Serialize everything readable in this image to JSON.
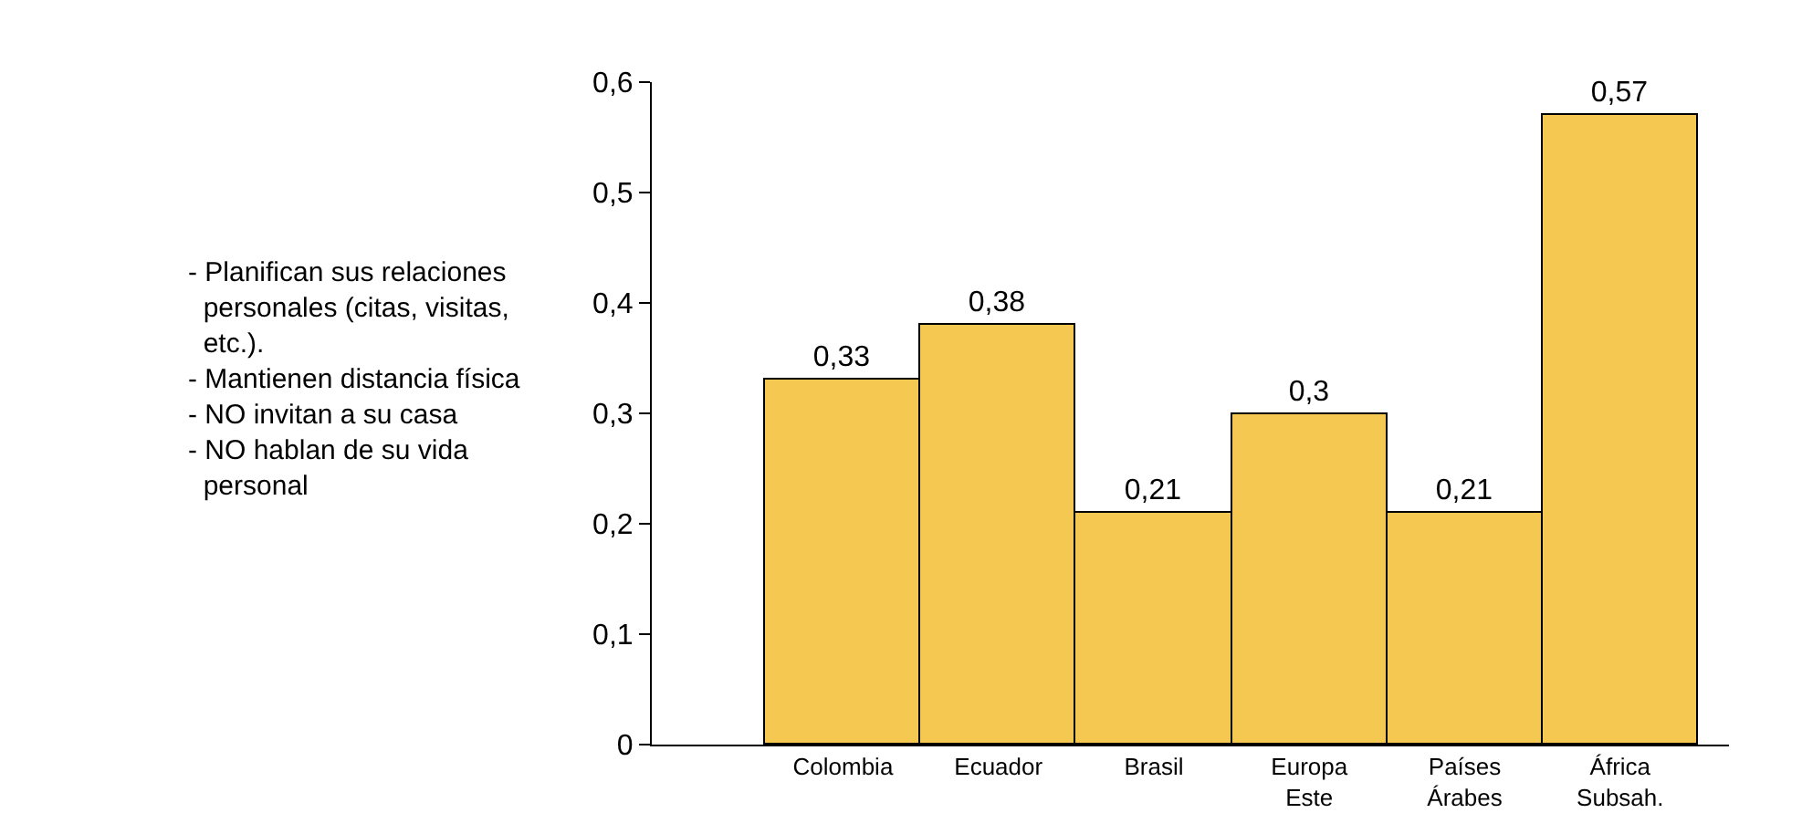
{
  "chart_data": {
    "type": "bar",
    "categories": [
      "Colombia",
      "Ecuador",
      "Brasil",
      "Europa\nEste",
      "Países\nÁrabes",
      "África\nSubsah."
    ],
    "values": [
      0.33,
      0.38,
      0.21,
      0.3,
      0.21,
      0.57
    ],
    "value_labels": [
      "0,33",
      "0,38",
      "0,21",
      "0,3",
      "0,21",
      "0,57"
    ],
    "color": "#f5c851",
    "ylim": [
      0,
      0.6
    ],
    "yticks": [
      0,
      {
        "value": 0.1,
        "label": "0,1"
      },
      {
        "value": 0.2,
        "label": "0,2"
      },
      {
        "value": 0.3,
        "label": "0,3"
      },
      {
        "value": 0.4,
        "label": "0,4"
      },
      {
        "value": 0.5,
        "label": "0,5"
      },
      {
        "value": 0.6,
        "label": "0,6"
      }
    ],
    "annotations": [
      "- Planifican sus relaciones\n  personales (citas, visitas,\n  etc.).\n- Mantienen distancia física\n- NO invitan a su casa\n- NO hablan de su vida\n  personal"
    ],
    "legend": false
  }
}
